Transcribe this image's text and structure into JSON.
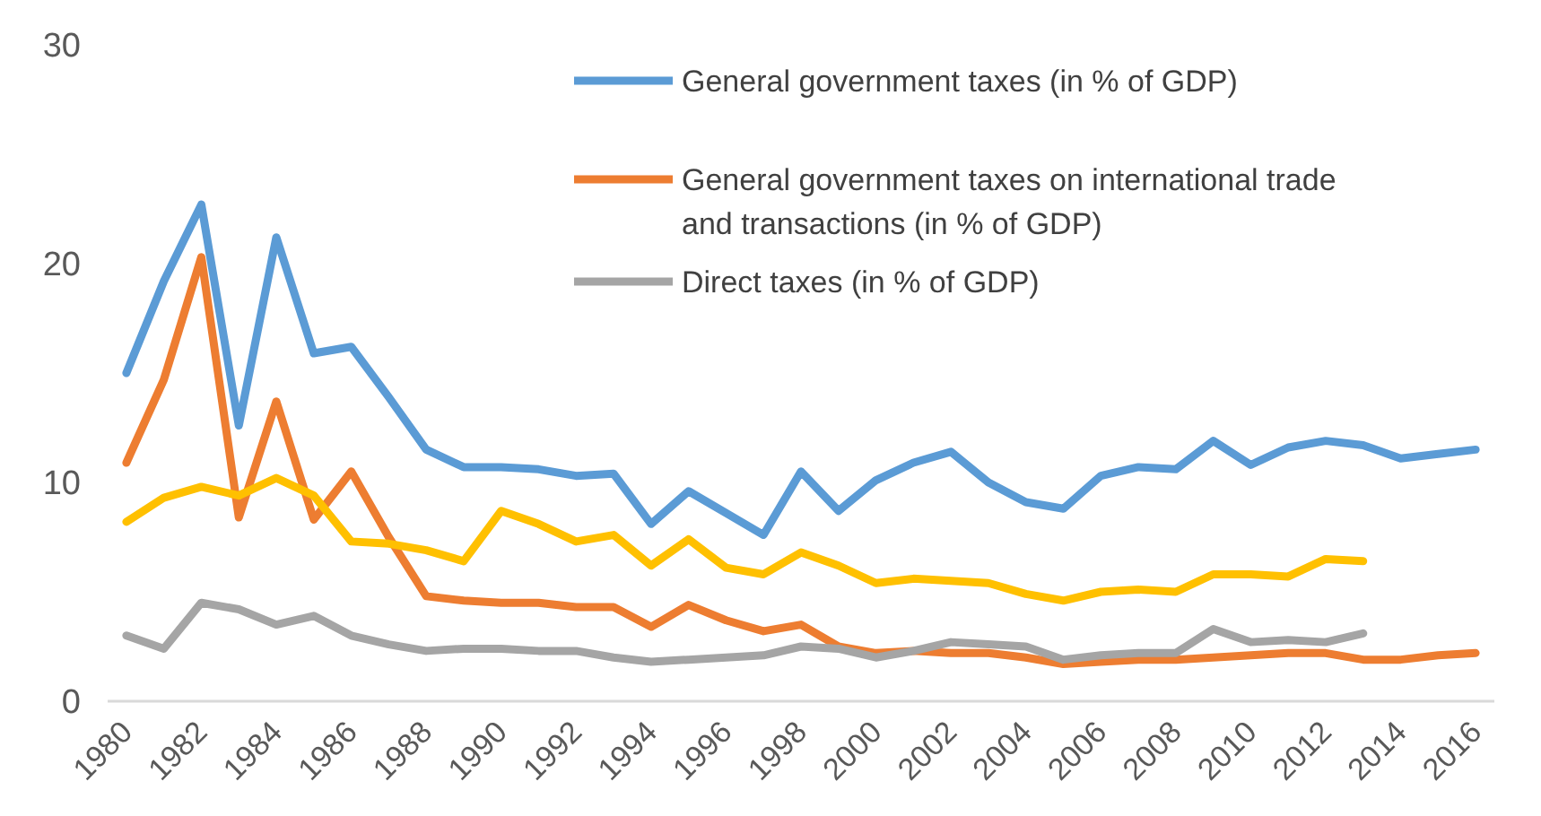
{
  "chart_data": {
    "type": "line",
    "x": [
      1980,
      1981,
      1982,
      1983,
      1984,
      1985,
      1986,
      1987,
      1988,
      1989,
      1990,
      1991,
      1992,
      1993,
      1994,
      1995,
      1996,
      1997,
      1998,
      1999,
      2000,
      2001,
      2002,
      2003,
      2004,
      2005,
      2006,
      2007,
      2008,
      2009,
      2010,
      2011,
      2012,
      2013,
      2014,
      2015,
      2016
    ],
    "xlim": [
      1979.5,
      2016.5
    ],
    "xticks": [
      1980,
      1982,
      1984,
      1986,
      1988,
      1990,
      1992,
      1994,
      1996,
      1998,
      2000,
      2002,
      2004,
      2006,
      2008,
      2010,
      2012,
      2014,
      2016
    ],
    "ylim": [
      0,
      30
    ],
    "yticks": [
      0,
      10,
      20,
      30
    ],
    "grid": false,
    "legend": "top right",
    "marker": "none",
    "line_style": "solid",
    "series": [
      {
        "name": "General government taxes (in % of GDP)",
        "color": "#5b9bd5",
        "values": [
          15.0,
          19.2,
          22.7,
          12.6,
          21.2,
          15.9,
          16.2,
          13.9,
          11.5,
          10.7,
          10.7,
          10.6,
          10.3,
          10.4,
          8.1,
          9.6,
          8.6,
          7.6,
          10.5,
          8.7,
          10.1,
          10.9,
          11.4,
          10.0,
          9.1,
          8.8,
          10.3,
          10.7,
          10.6,
          11.9,
          10.8,
          11.6,
          11.9,
          11.7,
          11.1,
          11.3,
          11.5
        ]
      },
      {
        "name": "General government taxes on international trade and transactions (in % of GDP)",
        "color": "#ed7d31",
        "values": [
          10.9,
          14.7,
          20.3,
          8.4,
          13.7,
          8.3,
          10.5,
          7.5,
          4.8,
          4.6,
          4.5,
          4.5,
          4.3,
          4.3,
          3.4,
          4.4,
          3.7,
          3.2,
          3.5,
          2.5,
          2.2,
          2.3,
          2.2,
          2.2,
          2.0,
          1.7,
          1.8,
          1.9,
          1.9,
          2.0,
          2.1,
          2.2,
          2.2,
          1.9,
          1.9,
          2.1,
          2.2
        ]
      },
      {
        "name": "Direct taxes (in % of GDP)",
        "color": "#a5a5a5",
        "values": [
          3.0,
          2.4,
          4.5,
          4.2,
          3.5,
          3.9,
          3.0,
          2.6,
          2.3,
          2.4,
          2.4,
          2.3,
          2.3,
          2.0,
          1.8,
          1.9,
          2.0,
          2.1,
          2.5,
          2.4,
          2.0,
          2.3,
          2.7,
          2.6,
          2.5,
          1.9,
          2.1,
          2.2,
          2.2,
          3.3,
          2.7,
          2.8,
          2.7,
          3.1,
          null,
          null,
          null
        ]
      },
      {
        "color": "#ffc000",
        "values": [
          8.2,
          9.3,
          9.8,
          9.4,
          10.2,
          9.4,
          7.3,
          7.2,
          6.9,
          6.4,
          8.7,
          8.1,
          7.3,
          7.6,
          6.2,
          7.4,
          6.1,
          5.8,
          6.8,
          6.2,
          5.4,
          5.6,
          5.5,
          5.4,
          4.9,
          4.6,
          5.0,
          5.1,
          5.0,
          5.8,
          5.8,
          5.7,
          6.5,
          6.4,
          null,
          null,
          null
        ]
      }
    ]
  }
}
